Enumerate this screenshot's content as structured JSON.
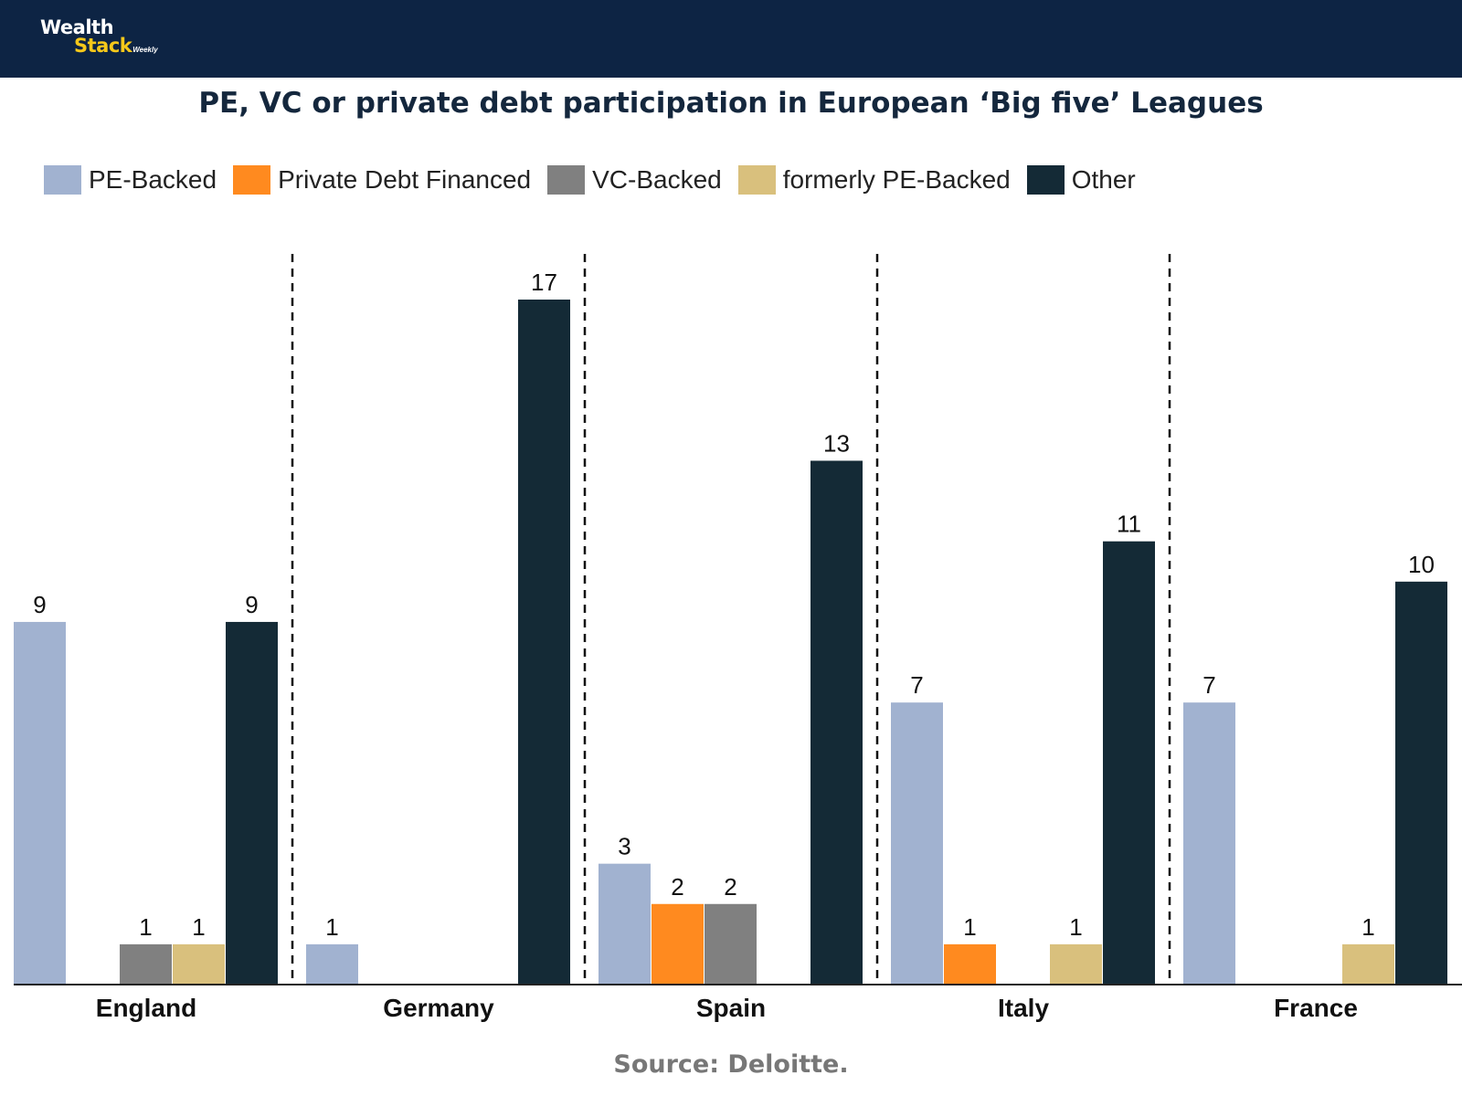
{
  "brand": {
    "line1": "Wealth",
    "line2": "Stack",
    "line3": "Weekly"
  },
  "source_note": "Source: Deloitte.",
  "colors": {
    "header_bg": "#0d2444",
    "pe_backed": "#a1b2d0",
    "private_debt": "#ff8a1f",
    "vc_backed": "#808080",
    "formerly_pe": "#d9c07d",
    "other": "#142a36"
  },
  "chart_data": {
    "type": "bar",
    "title": "PE, VC or private debt participation in European ‘Big five’ Leagues",
    "xlabel": "",
    "ylabel": "",
    "ylim": [
      0,
      17
    ],
    "grid": false,
    "legend_position": "top-left",
    "categories": [
      "England",
      "Germany",
      "Spain",
      "Italy",
      "France"
    ],
    "series": [
      {
        "name": "PE-Backed",
        "color": "#a1b2d0",
        "values": [
          9,
          1,
          3,
          7,
          7
        ]
      },
      {
        "name": "Private Debt Financed",
        "color": "#ff8a1f",
        "values": [
          null,
          null,
          2,
          1,
          null
        ]
      },
      {
        "name": "VC-Backed",
        "color": "#808080",
        "values": [
          1,
          null,
          2,
          null,
          null
        ]
      },
      {
        "name": "formerly PE-Backed",
        "color": "#d9c07d",
        "values": [
          1,
          null,
          null,
          1,
          1
        ]
      },
      {
        "name": "Other",
        "color": "#142a36",
        "values": [
          9,
          17,
          13,
          11,
          10
        ]
      }
    ]
  }
}
